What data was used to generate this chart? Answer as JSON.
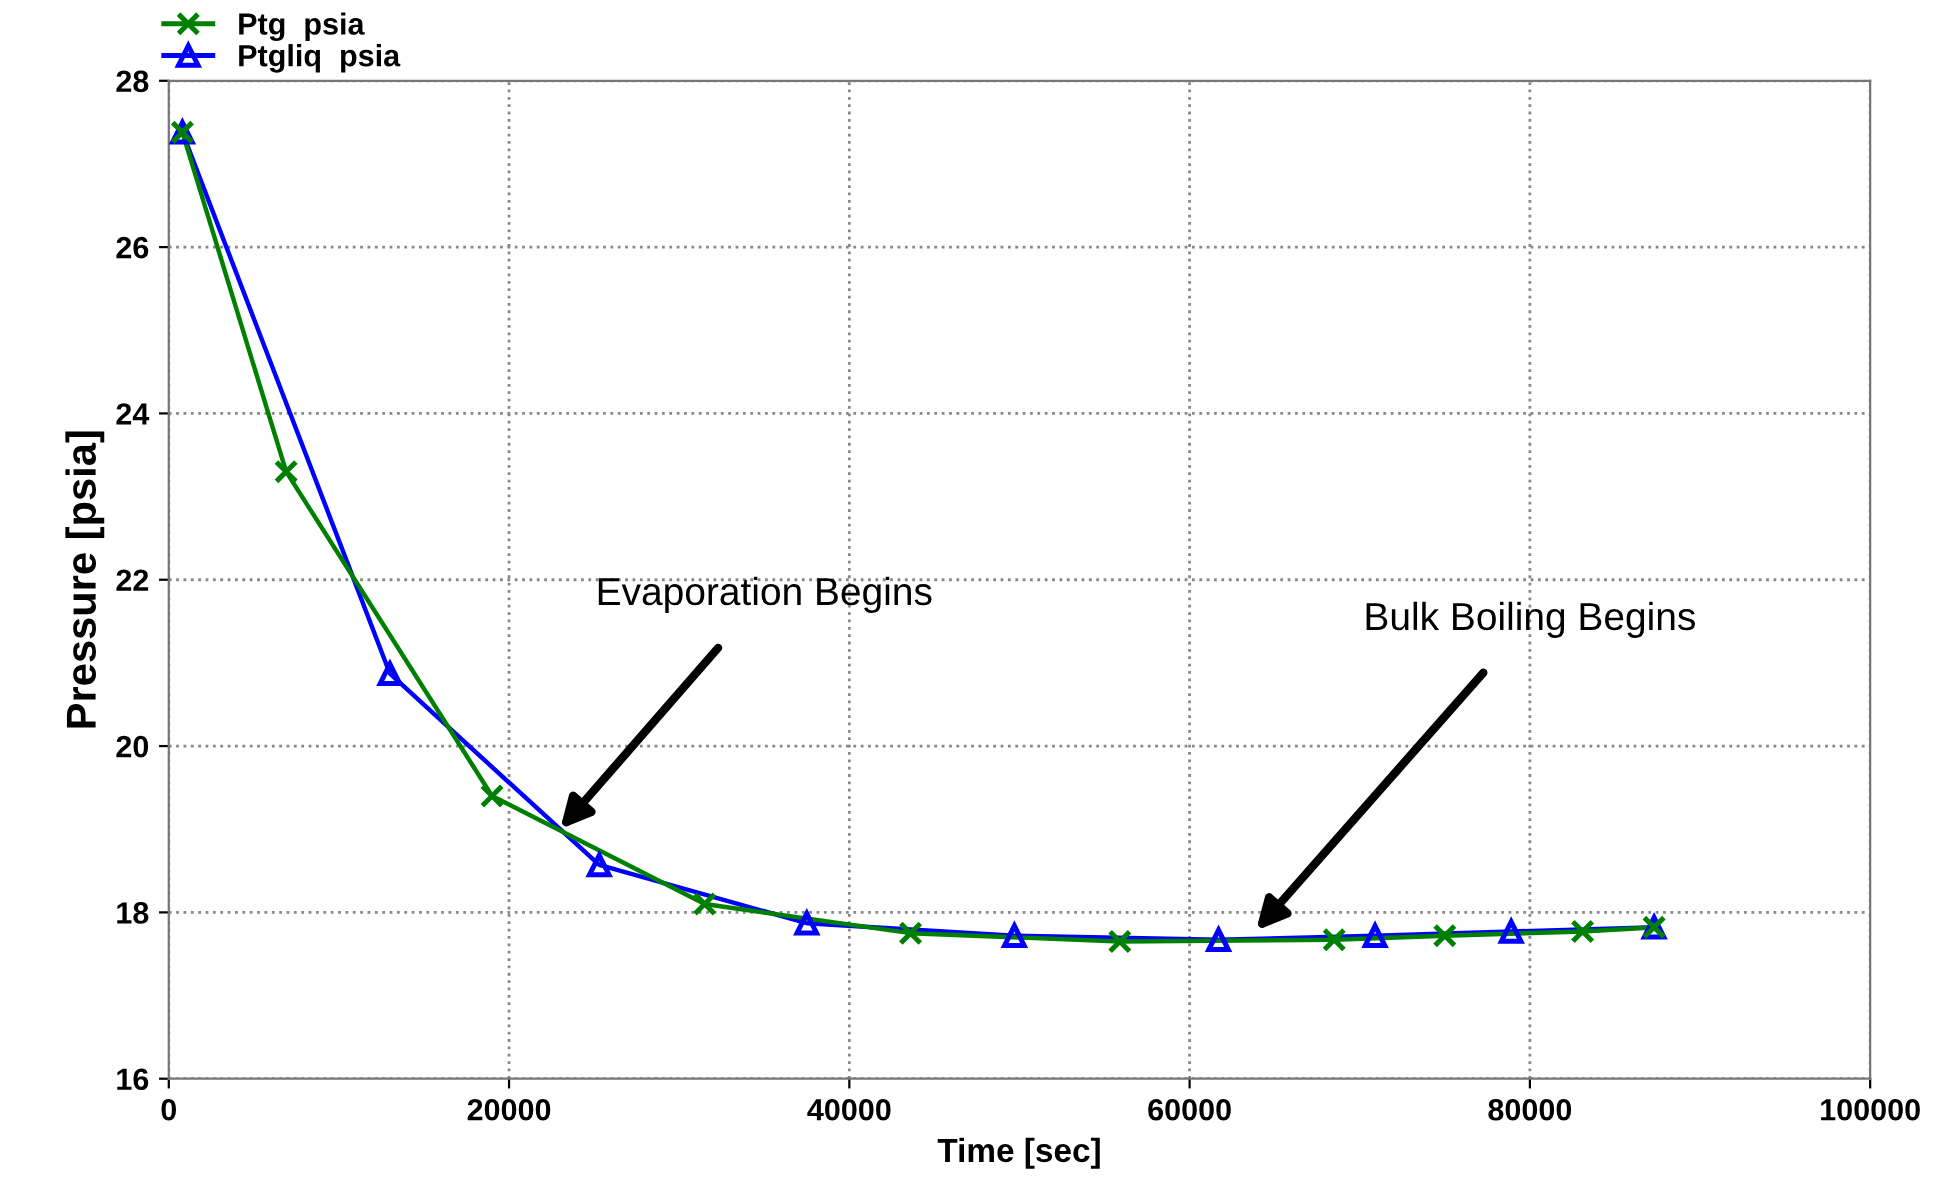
{
  "chart_data": {
    "type": "line",
    "xlabel": "Time [sec]",
    "ylabel": "Pressure [psia]",
    "xlim": [
      0,
      100000
    ],
    "xticks": [
      0,
      20000,
      40000,
      60000,
      80000,
      100000
    ],
    "ylim": [
      16,
      28
    ],
    "yticks": [
      16,
      18,
      20,
      22,
      24,
      26,
      28
    ],
    "grid": true,
    "legend": "top left",
    "series": [
      {
        "name": "Ptg  psia",
        "color": "#008000",
        "marker": "cross",
        "x": [
          800,
          6900,
          19000,
          31500,
          43600,
          55900,
          68500,
          75000,
          83100,
          87300
        ],
        "values": [
          27.38,
          23.3,
          19.4,
          18.1,
          17.75,
          17.65,
          17.67,
          17.72,
          17.77,
          17.82
        ]
      },
      {
        "name": "Ptgliq  psia",
        "color": "#0000ff",
        "marker": "triangle",
        "x": [
          800,
          13000,
          25300,
          37500,
          49700,
          61700,
          70900,
          78900,
          87300
        ],
        "values": [
          27.38,
          20.87,
          18.57,
          17.87,
          17.72,
          17.67,
          17.72,
          17.77,
          17.82
        ]
      }
    ],
    "annotations": [
      {
        "text": "Evaporation Begins",
        "x": 23000,
        "y": 19.0
      },
      {
        "text": "Bulk Boiling Begins",
        "x": 63900,
        "y": 17.78
      }
    ]
  }
}
